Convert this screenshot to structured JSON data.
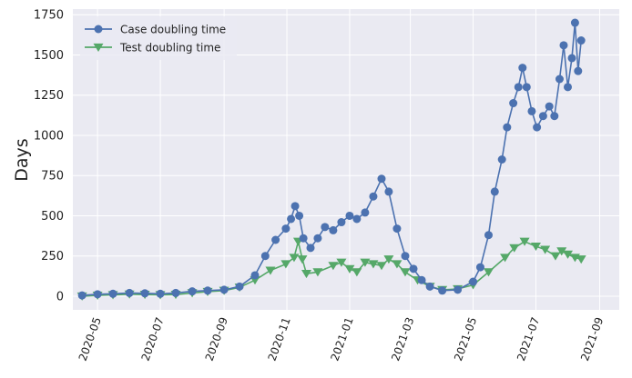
{
  "chart_data": {
    "type": "line",
    "ylabel": "Days",
    "xlabel": "",
    "title": "",
    "ylim": [
      -85,
      1785
    ],
    "xlim": [
      "2020-04-07",
      "2021-09-20"
    ],
    "yticks": [
      0,
      250,
      500,
      750,
      1000,
      1250,
      1500,
      1750
    ],
    "xticks": [
      "2020-05",
      "2020-07",
      "2020-09",
      "2020-11",
      "2021-01",
      "2021-03",
      "2021-05",
      "2021-07",
      "2021-09"
    ],
    "grid": true,
    "legend_position": "top-left",
    "style": {
      "background": "#eaeaf2",
      "grid": "#ffffff"
    },
    "series": [
      {
        "name": "Case doubling time",
        "color": "#4c72b0",
        "marker": "circle",
        "points": [
          [
            "2020-04-16",
            5
          ],
          [
            "2020-05-01",
            12
          ],
          [
            "2020-05-16",
            15
          ],
          [
            "2020-06-01",
            20
          ],
          [
            "2020-06-16",
            18
          ],
          [
            "2020-07-01",
            15
          ],
          [
            "2020-07-16",
            20
          ],
          [
            "2020-08-01",
            30
          ],
          [
            "2020-08-16",
            35
          ],
          [
            "2020-09-01",
            40
          ],
          [
            "2020-09-16",
            60
          ],
          [
            "2020-10-01",
            130
          ],
          [
            "2020-10-11",
            250
          ],
          [
            "2020-10-21",
            350
          ],
          [
            "2020-10-31",
            420
          ],
          [
            "2020-11-05",
            480
          ],
          [
            "2020-11-09",
            560
          ],
          [
            "2020-11-13",
            500
          ],
          [
            "2020-11-17",
            360
          ],
          [
            "2020-11-24",
            300
          ],
          [
            "2020-12-01",
            360
          ],
          [
            "2020-12-08",
            430
          ],
          [
            "2020-12-16",
            410
          ],
          [
            "2020-12-24",
            460
          ],
          [
            "2021-01-01",
            500
          ],
          [
            "2021-01-08",
            480
          ],
          [
            "2021-01-16",
            520
          ],
          [
            "2021-01-24",
            620
          ],
          [
            "2021-02-01",
            730
          ],
          [
            "2021-02-08",
            650
          ],
          [
            "2021-02-16",
            420
          ],
          [
            "2021-02-24",
            250
          ],
          [
            "2021-03-04",
            170
          ],
          [
            "2021-03-12",
            100
          ],
          [
            "2021-03-20",
            60
          ],
          [
            "2021-04-01",
            35
          ],
          [
            "2021-04-16",
            40
          ],
          [
            "2021-05-01",
            90
          ],
          [
            "2021-05-08",
            180
          ],
          [
            "2021-05-16",
            380
          ],
          [
            "2021-05-22",
            650
          ],
          [
            "2021-05-29",
            850
          ],
          [
            "2021-06-03",
            1050
          ],
          [
            "2021-06-09",
            1200
          ],
          [
            "2021-06-14",
            1300
          ],
          [
            "2021-06-18",
            1420
          ],
          [
            "2021-06-22",
            1300
          ],
          [
            "2021-06-27",
            1150
          ],
          [
            "2021-07-02",
            1050
          ],
          [
            "2021-07-08",
            1120
          ],
          [
            "2021-07-14",
            1180
          ],
          [
            "2021-07-19",
            1120
          ],
          [
            "2021-07-24",
            1350
          ],
          [
            "2021-07-28",
            1560
          ],
          [
            "2021-08-01",
            1300
          ],
          [
            "2021-08-05",
            1480
          ],
          [
            "2021-08-08",
            1700
          ],
          [
            "2021-08-11",
            1400
          ],
          [
            "2021-08-14",
            1590
          ]
        ]
      },
      {
        "name": "Test doubling time",
        "color": "#55a868",
        "marker": "triangle-down",
        "points": [
          [
            "2020-04-16",
            0
          ],
          [
            "2020-05-01",
            5
          ],
          [
            "2020-05-16",
            8
          ],
          [
            "2020-06-01",
            12
          ],
          [
            "2020-06-16",
            10
          ],
          [
            "2020-07-01",
            8
          ],
          [
            "2020-07-16",
            10
          ],
          [
            "2020-08-01",
            20
          ],
          [
            "2020-08-16",
            28
          ],
          [
            "2020-09-01",
            35
          ],
          [
            "2020-09-16",
            55
          ],
          [
            "2020-10-01",
            100
          ],
          [
            "2020-10-16",
            160
          ],
          [
            "2020-10-31",
            200
          ],
          [
            "2020-11-08",
            240
          ],
          [
            "2020-11-12",
            340
          ],
          [
            "2020-11-16",
            230
          ],
          [
            "2020-11-20",
            140
          ],
          [
            "2020-12-01",
            150
          ],
          [
            "2020-12-16",
            190
          ],
          [
            "2020-12-24",
            210
          ],
          [
            "2021-01-01",
            170
          ],
          [
            "2021-01-08",
            150
          ],
          [
            "2021-01-16",
            210
          ],
          [
            "2021-01-24",
            200
          ],
          [
            "2021-02-01",
            190
          ],
          [
            "2021-02-08",
            230
          ],
          [
            "2021-02-16",
            200
          ],
          [
            "2021-02-24",
            150
          ],
          [
            "2021-03-08",
            100
          ],
          [
            "2021-03-20",
            60
          ],
          [
            "2021-04-01",
            40
          ],
          [
            "2021-04-16",
            45
          ],
          [
            "2021-05-01",
            70
          ],
          [
            "2021-05-16",
            150
          ],
          [
            "2021-06-01",
            240
          ],
          [
            "2021-06-10",
            300
          ],
          [
            "2021-06-20",
            340
          ],
          [
            "2021-07-01",
            310
          ],
          [
            "2021-07-10",
            290
          ],
          [
            "2021-07-20",
            250
          ],
          [
            "2021-07-26",
            280
          ],
          [
            "2021-08-01",
            260
          ],
          [
            "2021-08-08",
            240
          ],
          [
            "2021-08-14",
            230
          ]
        ]
      }
    ]
  }
}
